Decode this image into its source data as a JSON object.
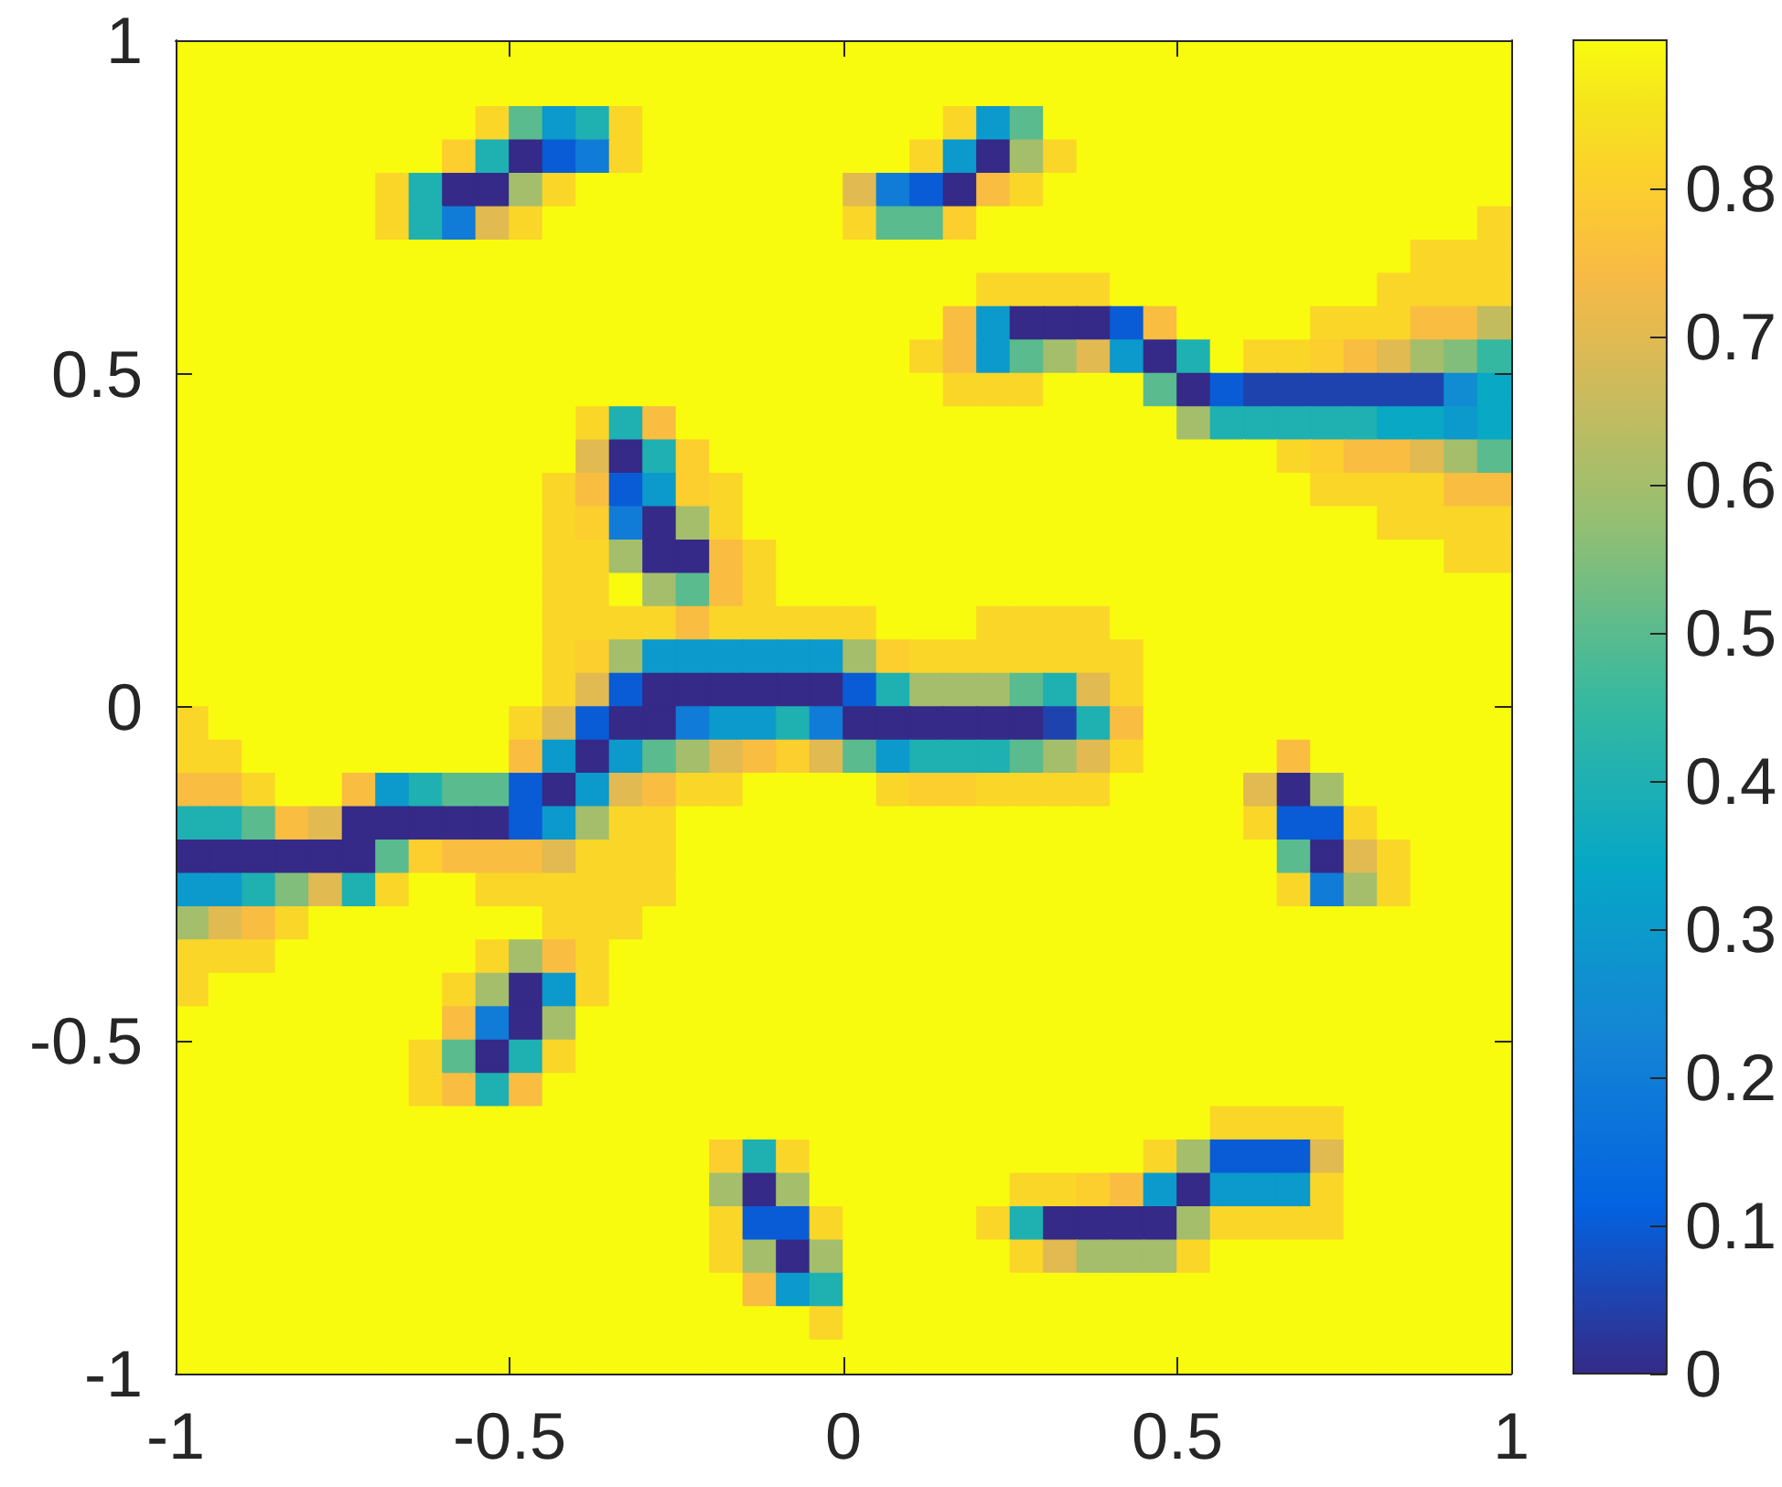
{
  "chart_data": {
    "type": "heatmap",
    "xlim": [
      -1,
      1
    ],
    "ylim": [
      -1,
      1
    ],
    "xticks": [
      -1,
      -0.5,
      0,
      0.5,
      1
    ],
    "yticks": [
      -1,
      -0.5,
      0,
      0.5,
      1
    ],
    "clim": [
      0,
      0.9
    ],
    "cticks": [
      0,
      0.1,
      0.2,
      0.3,
      0.4,
      0.5,
      0.6,
      0.7,
      0.8
    ],
    "cells": [
      [
        0.9,
        0.9,
        0.9,
        0.9,
        0.9,
        0.9,
        0.9,
        0.9,
        0.9,
        0.9,
        0.9,
        0.9,
        0.9,
        0.9,
        0.9,
        0.9,
        0.9,
        0.9,
        0.9,
        0.9,
        0.9,
        0.9,
        0.9,
        0.9,
        0.9,
        0.9,
        0.9,
        0.9,
        0.9,
        0.9,
        0.9,
        0.9,
        0.9,
        0.9,
        0.9,
        0.9,
        0.9,
        0.9,
        0.9,
        0.9
      ],
      [
        0.9,
        0.9,
        0.9,
        0.9,
        0.9,
        0.9,
        0.9,
        0.9,
        0.9,
        0.9,
        0.9,
        0.9,
        0.9,
        0.9,
        0.9,
        0.9,
        0.9,
        0.9,
        0.9,
        0.9,
        0.9,
        0.9,
        0.9,
        0.9,
        0.9,
        0.9,
        0.9,
        0.9,
        0.9,
        0.9,
        0.9,
        0.9,
        0.9,
        0.9,
        0.9,
        0.9,
        0.9,
        0.9,
        0.9,
        0.9
      ],
      [
        0.9,
        0.9,
        0.9,
        0.9,
        0.9,
        0.9,
        0.9,
        0.9,
        0.9,
        0.82,
        0.5,
        0.3,
        0.4,
        0.82,
        0.9,
        0.9,
        0.9,
        0.9,
        0.9,
        0.9,
        0.9,
        0.9,
        0.9,
        0.82,
        0.3,
        0.5,
        0.9,
        0.9,
        0.9,
        0.9,
        0.9,
        0.9,
        0.9,
        0.9,
        0.9,
        0.9,
        0.9,
        0.9,
        0.9,
        0.9
      ],
      [
        0.9,
        0.9,
        0.9,
        0.9,
        0.9,
        0.9,
        0.9,
        0.9,
        0.8,
        0.4,
        0,
        0.1,
        0.2,
        0.82,
        0.9,
        0.9,
        0.9,
        0.9,
        0.9,
        0.9,
        0.9,
        0.9,
        0.82,
        0.3,
        0,
        0.6,
        0.82,
        0.9,
        0.9,
        0.9,
        0.9,
        0.9,
        0.9,
        0.9,
        0.9,
        0.9,
        0.9,
        0.9,
        0.9,
        0.9
      ],
      [
        0.9,
        0.9,
        0.9,
        0.9,
        0.9,
        0.9,
        0.82,
        0.4,
        0,
        0,
        0.6,
        0.82,
        0.9,
        0.9,
        0.9,
        0.9,
        0.9,
        0.9,
        0.9,
        0.9,
        0.7,
        0.2,
        0.1,
        0,
        0.75,
        0.82,
        0.9,
        0.9,
        0.9,
        0.9,
        0.9,
        0.9,
        0.9,
        0.9,
        0.9,
        0.9,
        0.9,
        0.9,
        0.9,
        0.9
      ],
      [
        0.9,
        0.9,
        0.9,
        0.9,
        0.9,
        0.9,
        0.82,
        0.4,
        0.2,
        0.7,
        0.82,
        0.9,
        0.9,
        0.9,
        0.9,
        0.9,
        0.9,
        0.9,
        0.9,
        0.9,
        0.82,
        0.5,
        0.5,
        0.8,
        0.9,
        0.9,
        0.9,
        0.9,
        0.9,
        0.9,
        0.9,
        0.9,
        0.9,
        0.9,
        0.9,
        0.9,
        0.9,
        0.9,
        0.9,
        0.82
      ],
      [
        0.9,
        0.9,
        0.9,
        0.9,
        0.9,
        0.9,
        0.9,
        0.9,
        0.9,
        0.9,
        0.9,
        0.9,
        0.9,
        0.9,
        0.9,
        0.9,
        0.9,
        0.9,
        0.9,
        0.9,
        0.9,
        0.9,
        0.9,
        0.9,
        0.9,
        0.9,
        0.9,
        0.9,
        0.9,
        0.9,
        0.9,
        0.9,
        0.9,
        0.9,
        0.9,
        0.9,
        0.9,
        0.82,
        0.82,
        0.82
      ],
      [
        0.9,
        0.9,
        0.9,
        0.9,
        0.9,
        0.9,
        0.9,
        0.9,
        0.9,
        0.9,
        0.9,
        0.9,
        0.9,
        0.9,
        0.9,
        0.9,
        0.9,
        0.9,
        0.9,
        0.9,
        0.9,
        0.9,
        0.9,
        0.9,
        0.82,
        0.82,
        0.82,
        0.82,
        0.9,
        0.9,
        0.9,
        0.9,
        0.9,
        0.9,
        0.9,
        0.9,
        0.82,
        0.82,
        0.82,
        0.82
      ],
      [
        0.9,
        0.9,
        0.9,
        0.9,
        0.9,
        0.9,
        0.9,
        0.9,
        0.9,
        0.9,
        0.9,
        0.9,
        0.9,
        0.9,
        0.9,
        0.9,
        0.9,
        0.9,
        0.9,
        0.9,
        0.9,
        0.9,
        0.9,
        0.75,
        0.3,
        0,
        0,
        0,
        0.1,
        0.75,
        0.9,
        0.9,
        0.9,
        0.9,
        0.82,
        0.82,
        0.82,
        0.75,
        0.75,
        0.65
      ],
      [
        0.9,
        0.9,
        0.9,
        0.9,
        0.9,
        0.9,
        0.9,
        0.9,
        0.9,
        0.9,
        0.9,
        0.9,
        0.9,
        0.9,
        0.9,
        0.9,
        0.9,
        0.9,
        0.9,
        0.9,
        0.9,
        0.9,
        0.82,
        0.75,
        0.3,
        0.5,
        0.6,
        0.7,
        0.3,
        0,
        0.4,
        0.9,
        0.82,
        0.82,
        0.8,
        0.75,
        0.7,
        0.6,
        0.55,
        0.45
      ],
      [
        0.9,
        0.9,
        0.9,
        0.9,
        0.9,
        0.9,
        0.9,
        0.9,
        0.9,
        0.9,
        0.9,
        0.9,
        0.9,
        0.9,
        0.9,
        0.9,
        0.9,
        0.9,
        0.9,
        0.9,
        0.9,
        0.9,
        0.9,
        0.82,
        0.82,
        0.82,
        0.9,
        0.9,
        0.9,
        0.5,
        0,
        0.1,
        0.05,
        0.05,
        0.05,
        0.05,
        0.05,
        0.05,
        0.25,
        0.35
      ],
      [
        0.9,
        0.9,
        0.9,
        0.9,
        0.9,
        0.9,
        0.9,
        0.9,
        0.9,
        0.9,
        0.9,
        0.9,
        0.82,
        0.4,
        0.75,
        0.9,
        0.9,
        0.9,
        0.9,
        0.9,
        0.9,
        0.9,
        0.9,
        0.9,
        0.9,
        0.9,
        0.9,
        0.9,
        0.9,
        0.9,
        0.6,
        0.4,
        0.4,
        0.4,
        0.4,
        0.4,
        0.35,
        0.35,
        0.3,
        0.35
      ],
      [
        0.9,
        0.9,
        0.9,
        0.9,
        0.9,
        0.9,
        0.9,
        0.9,
        0.9,
        0.9,
        0.9,
        0.9,
        0.7,
        0,
        0.4,
        0.8,
        0.9,
        0.9,
        0.9,
        0.9,
        0.9,
        0.9,
        0.9,
        0.9,
        0.9,
        0.9,
        0.9,
        0.9,
        0.9,
        0.9,
        0.9,
        0.9,
        0.9,
        0.82,
        0.8,
        0.75,
        0.75,
        0.7,
        0.6,
        0.5
      ],
      [
        0.9,
        0.9,
        0.9,
        0.9,
        0.9,
        0.9,
        0.9,
        0.9,
        0.9,
        0.9,
        0.9,
        0.82,
        0.75,
        0.1,
        0.3,
        0.8,
        0.82,
        0.9,
        0.9,
        0.9,
        0.9,
        0.9,
        0.9,
        0.9,
        0.9,
        0.9,
        0.9,
        0.9,
        0.9,
        0.9,
        0.9,
        0.9,
        0.9,
        0.9,
        0.82,
        0.82,
        0.82,
        0.82,
        0.75,
        0.75
      ],
      [
        0.9,
        0.9,
        0.9,
        0.9,
        0.9,
        0.9,
        0.9,
        0.9,
        0.9,
        0.9,
        0.9,
        0.82,
        0.8,
        0.2,
        0,
        0.6,
        0.82,
        0.9,
        0.9,
        0.9,
        0.9,
        0.9,
        0.9,
        0.9,
        0.9,
        0.9,
        0.9,
        0.9,
        0.9,
        0.9,
        0.9,
        0.9,
        0.9,
        0.9,
        0.9,
        0.9,
        0.82,
        0.82,
        0.82,
        0.82
      ],
      [
        0.9,
        0.9,
        0.9,
        0.9,
        0.9,
        0.9,
        0.9,
        0.9,
        0.9,
        0.9,
        0.9,
        0.82,
        0.82,
        0.6,
        0,
        0,
        0.75,
        0.82,
        0.9,
        0.9,
        0.9,
        0.9,
        0.9,
        0.9,
        0.9,
        0.9,
        0.9,
        0.9,
        0.9,
        0.9,
        0.9,
        0.9,
        0.9,
        0.9,
        0.9,
        0.9,
        0.9,
        0.9,
        0.82,
        0.82
      ],
      [
        0.9,
        0.9,
        0.9,
        0.9,
        0.9,
        0.9,
        0.9,
        0.9,
        0.9,
        0.9,
        0.9,
        0.82,
        0.82,
        0.9,
        0.6,
        0.5,
        0.75,
        0.82,
        0.9,
        0.9,
        0.9,
        0.9,
        0.9,
        0.9,
        0.9,
        0.9,
        0.9,
        0.9,
        0.9,
        0.9,
        0.9,
        0.9,
        0.9,
        0.9,
        0.9,
        0.9,
        0.9,
        0.9,
        0.9,
        0.9
      ],
      [
        0.9,
        0.9,
        0.9,
        0.9,
        0.9,
        0.9,
        0.9,
        0.9,
        0.9,
        0.9,
        0.9,
        0.82,
        0.82,
        0.82,
        0.82,
        0.75,
        0.82,
        0.82,
        0.82,
        0.82,
        0.82,
        0.9,
        0.9,
        0.9,
        0.82,
        0.82,
        0.82,
        0.82,
        0.9,
        0.9,
        0.9,
        0.9,
        0.9,
        0.9,
        0.9,
        0.9,
        0.9,
        0.9,
        0.9,
        0.9
      ],
      [
        0.9,
        0.9,
        0.9,
        0.9,
        0.9,
        0.9,
        0.9,
        0.9,
        0.9,
        0.9,
        0.9,
        0.82,
        0.8,
        0.6,
        0.3,
        0.3,
        0.3,
        0.3,
        0.3,
        0.3,
        0.6,
        0.8,
        0.82,
        0.82,
        0.82,
        0.82,
        0.82,
        0.82,
        0.82,
        0.9,
        0.9,
        0.9,
        0.9,
        0.9,
        0.9,
        0.9,
        0.9,
        0.9,
        0.9,
        0.9
      ],
      [
        0.9,
        0.9,
        0.9,
        0.9,
        0.9,
        0.9,
        0.9,
        0.9,
        0.9,
        0.9,
        0.9,
        0.82,
        0.7,
        0.1,
        0,
        0,
        0,
        0,
        0,
        0,
        0.1,
        0.4,
        0.6,
        0.6,
        0.6,
        0.5,
        0.4,
        0.7,
        0.82,
        0.9,
        0.9,
        0.9,
        0.9,
        0.9,
        0.9,
        0.9,
        0.9,
        0.9,
        0.9,
        0.9
      ],
      [
        0.82,
        0.9,
        0.9,
        0.9,
        0.9,
        0.9,
        0.9,
        0.9,
        0.9,
        0.9,
        0.82,
        0.7,
        0.1,
        0,
        0,
        0.2,
        0.3,
        0.3,
        0.4,
        0.2,
        0,
        0,
        0,
        0,
        0,
        0,
        0.05,
        0.4,
        0.75,
        0.9,
        0.9,
        0.9,
        0.9,
        0.9,
        0.9,
        0.9,
        0.9,
        0.9,
        0.9,
        0.9
      ],
      [
        0.82,
        0.82,
        0.9,
        0.9,
        0.9,
        0.9,
        0.9,
        0.9,
        0.9,
        0.9,
        0.75,
        0.3,
        0,
        0.3,
        0.5,
        0.6,
        0.7,
        0.75,
        0.8,
        0.7,
        0.5,
        0.3,
        0.4,
        0.4,
        0.4,
        0.5,
        0.6,
        0.7,
        0.82,
        0.9,
        0.9,
        0.9,
        0.9,
        0.75,
        0.9,
        0.9,
        0.9,
        0.9,
        0.9,
        0.9
      ],
      [
        0.75,
        0.75,
        0.82,
        0.9,
        0.9,
        0.75,
        0.3,
        0.4,
        0.5,
        0.5,
        0.1,
        0,
        0.3,
        0.7,
        0.75,
        0.82,
        0.82,
        0.9,
        0.9,
        0.9,
        0.9,
        0.82,
        0.8,
        0.8,
        0.82,
        0.82,
        0.82,
        0.82,
        0.9,
        0.9,
        0.9,
        0.9,
        0.7,
        0,
        0.6,
        0.9,
        0.9,
        0.9,
        0.9,
        0.9
      ],
      [
        0.4,
        0.4,
        0.5,
        0.75,
        0.7,
        0,
        0,
        0,
        0,
        0,
        0.1,
        0.3,
        0.6,
        0.82,
        0.82,
        0.9,
        0.9,
        0.9,
        0.9,
        0.9,
        0.9,
        0.9,
        0.9,
        0.9,
        0.9,
        0.9,
        0.9,
        0.9,
        0.9,
        0.9,
        0.9,
        0.9,
        0.82,
        0.1,
        0.1,
        0.82,
        0.9,
        0.9,
        0.9,
        0.9
      ],
      [
        0,
        0,
        0,
        0,
        0,
        0,
        0.5,
        0.8,
        0.75,
        0.75,
        0.75,
        0.7,
        0.82,
        0.82,
        0.82,
        0.9,
        0.9,
        0.9,
        0.9,
        0.9,
        0.9,
        0.9,
        0.9,
        0.9,
        0.9,
        0.9,
        0.9,
        0.9,
        0.9,
        0.9,
        0.9,
        0.9,
        0.9,
        0.5,
        0,
        0.7,
        0.82,
        0.9,
        0.9,
        0.9
      ],
      [
        0.3,
        0.3,
        0.4,
        0.55,
        0.7,
        0.4,
        0.82,
        0.9,
        0.9,
        0.82,
        0.82,
        0.82,
        0.82,
        0.82,
        0.82,
        0.9,
        0.9,
        0.9,
        0.9,
        0.9,
        0.9,
        0.9,
        0.9,
        0.9,
        0.9,
        0.9,
        0.9,
        0.9,
        0.9,
        0.9,
        0.9,
        0.9,
        0.9,
        0.82,
        0.2,
        0.6,
        0.82,
        0.9,
        0.9,
        0.9
      ],
      [
        0.6,
        0.7,
        0.75,
        0.82,
        0.9,
        0.9,
        0.9,
        0.9,
        0.9,
        0.9,
        0.9,
        0.82,
        0.82,
        0.82,
        0.9,
        0.9,
        0.9,
        0.9,
        0.9,
        0.9,
        0.9,
        0.9,
        0.9,
        0.9,
        0.9,
        0.9,
        0.9,
        0.9,
        0.9,
        0.9,
        0.9,
        0.9,
        0.9,
        0.9,
        0.9,
        0.9,
        0.9,
        0.9,
        0.9,
        0.9
      ],
      [
        0.82,
        0.82,
        0.82,
        0.9,
        0.9,
        0.9,
        0.9,
        0.9,
        0.9,
        0.82,
        0.6,
        0.75,
        0.82,
        0.9,
        0.9,
        0.9,
        0.9,
        0.9,
        0.9,
        0.9,
        0.9,
        0.9,
        0.9,
        0.9,
        0.9,
        0.9,
        0.9,
        0.9,
        0.9,
        0.9,
        0.9,
        0.9,
        0.9,
        0.9,
        0.9,
        0.9,
        0.9,
        0.9,
        0.9,
        0.9
      ],
      [
        0.82,
        0.9,
        0.9,
        0.9,
        0.9,
        0.9,
        0.9,
        0.9,
        0.82,
        0.6,
        0,
        0.3,
        0.82,
        0.9,
        0.9,
        0.9,
        0.9,
        0.9,
        0.9,
        0.9,
        0.9,
        0.9,
        0.9,
        0.9,
        0.9,
        0.9,
        0.9,
        0.9,
        0.9,
        0.9,
        0.9,
        0.9,
        0.9,
        0.9,
        0.9,
        0.9,
        0.9,
        0.9,
        0.9,
        0.9
      ],
      [
        0.9,
        0.9,
        0.9,
        0.9,
        0.9,
        0.9,
        0.9,
        0.9,
        0.75,
        0.2,
        0,
        0.6,
        0.9,
        0.9,
        0.9,
        0.9,
        0.9,
        0.9,
        0.9,
        0.9,
        0.9,
        0.9,
        0.9,
        0.9,
        0.9,
        0.9,
        0.9,
        0.9,
        0.9,
        0.9,
        0.9,
        0.9,
        0.9,
        0.9,
        0.9,
        0.9,
        0.9,
        0.9,
        0.9,
        0.9
      ],
      [
        0.9,
        0.9,
        0.9,
        0.9,
        0.9,
        0.9,
        0.9,
        0.82,
        0.5,
        0,
        0.4,
        0.82,
        0.9,
        0.9,
        0.9,
        0.9,
        0.9,
        0.9,
        0.9,
        0.9,
        0.9,
        0.9,
        0.9,
        0.9,
        0.9,
        0.9,
        0.9,
        0.9,
        0.9,
        0.9,
        0.9,
        0.9,
        0.9,
        0.9,
        0.9,
        0.9,
        0.9,
        0.9,
        0.9,
        0.9
      ],
      [
        0.9,
        0.9,
        0.9,
        0.9,
        0.9,
        0.9,
        0.9,
        0.82,
        0.75,
        0.4,
        0.75,
        0.9,
        0.9,
        0.9,
        0.9,
        0.9,
        0.9,
        0.9,
        0.9,
        0.9,
        0.9,
        0.9,
        0.9,
        0.9,
        0.9,
        0.9,
        0.9,
        0.9,
        0.9,
        0.9,
        0.9,
        0.9,
        0.9,
        0.9,
        0.9,
        0.9,
        0.9,
        0.9,
        0.9,
        0.9
      ],
      [
        0.9,
        0.9,
        0.9,
        0.9,
        0.9,
        0.9,
        0.9,
        0.9,
        0.9,
        0.9,
        0.9,
        0.9,
        0.9,
        0.9,
        0.9,
        0.9,
        0.9,
        0.9,
        0.9,
        0.9,
        0.9,
        0.9,
        0.9,
        0.9,
        0.9,
        0.9,
        0.9,
        0.9,
        0.9,
        0.9,
        0.9,
        0.82,
        0.82,
        0.82,
        0.82,
        0.9,
        0.9,
        0.9,
        0.9,
        0.9
      ],
      [
        0.9,
        0.9,
        0.9,
        0.9,
        0.9,
        0.9,
        0.9,
        0.9,
        0.9,
        0.9,
        0.9,
        0.9,
        0.9,
        0.9,
        0.9,
        0.9,
        0.8,
        0.4,
        0.82,
        0.9,
        0.9,
        0.9,
        0.9,
        0.9,
        0.9,
        0.9,
        0.9,
        0.9,
        0.9,
        0.82,
        0.6,
        0.1,
        0.1,
        0.1,
        0.7,
        0.9,
        0.9,
        0.9,
        0.9,
        0.9
      ],
      [
        0.9,
        0.9,
        0.9,
        0.9,
        0.9,
        0.9,
        0.9,
        0.9,
        0.9,
        0.9,
        0.9,
        0.9,
        0.9,
        0.9,
        0.9,
        0.9,
        0.6,
        0,
        0.6,
        0.9,
        0.9,
        0.9,
        0.9,
        0.9,
        0.9,
        0.82,
        0.82,
        0.8,
        0.75,
        0.3,
        0,
        0.3,
        0.3,
        0.3,
        0.82,
        0.9,
        0.9,
        0.9,
        0.9,
        0.9
      ],
      [
        0.9,
        0.9,
        0.9,
        0.9,
        0.9,
        0.9,
        0.9,
        0.9,
        0.9,
        0.9,
        0.9,
        0.9,
        0.9,
        0.9,
        0.9,
        0.9,
        0.82,
        0.1,
        0.1,
        0.82,
        0.9,
        0.9,
        0.9,
        0.9,
        0.82,
        0.4,
        0,
        0,
        0,
        0,
        0.6,
        0.82,
        0.82,
        0.82,
        0.82,
        0.9,
        0.9,
        0.9,
        0.9,
        0.9
      ],
      [
        0.9,
        0.9,
        0.9,
        0.9,
        0.9,
        0.9,
        0.9,
        0.9,
        0.9,
        0.9,
        0.9,
        0.9,
        0.9,
        0.9,
        0.9,
        0.9,
        0.82,
        0.6,
        0,
        0.6,
        0.9,
        0.9,
        0.9,
        0.9,
        0.9,
        0.82,
        0.7,
        0.6,
        0.6,
        0.6,
        0.82,
        0.9,
        0.9,
        0.9,
        0.9,
        0.9,
        0.9,
        0.9,
        0.9,
        0.9
      ],
      [
        0.9,
        0.9,
        0.9,
        0.9,
        0.9,
        0.9,
        0.9,
        0.9,
        0.9,
        0.9,
        0.9,
        0.9,
        0.9,
        0.9,
        0.9,
        0.9,
        0.9,
        0.75,
        0.3,
        0.4,
        0.9,
        0.9,
        0.9,
        0.9,
        0.9,
        0.9,
        0.9,
        0.9,
        0.9,
        0.9,
        0.9,
        0.9,
        0.9,
        0.9,
        0.9,
        0.9,
        0.9,
        0.9,
        0.9,
        0.9
      ],
      [
        0.9,
        0.9,
        0.9,
        0.9,
        0.9,
        0.9,
        0.9,
        0.9,
        0.9,
        0.9,
        0.9,
        0.9,
        0.9,
        0.9,
        0.9,
        0.9,
        0.9,
        0.9,
        0.9,
        0.82,
        0.9,
        0.9,
        0.9,
        0.9,
        0.9,
        0.9,
        0.9,
        0.9,
        0.9,
        0.9,
        0.9,
        0.9,
        0.9,
        0.9,
        0.9,
        0.9,
        0.9,
        0.9,
        0.9,
        0.9
      ],
      [
        0.9,
        0.9,
        0.9,
        0.9,
        0.9,
        0.9,
        0.9,
        0.9,
        0.9,
        0.9,
        0.9,
        0.9,
        0.9,
        0.9,
        0.9,
        0.9,
        0.9,
        0.9,
        0.9,
        0.9,
        0.9,
        0.9,
        0.9,
        0.9,
        0.9,
        0.9,
        0.9,
        0.9,
        0.9,
        0.9,
        0.9,
        0.9,
        0.9,
        0.9,
        0.9,
        0.9,
        0.9,
        0.9,
        0.9,
        0.9
      ]
    ]
  }
}
